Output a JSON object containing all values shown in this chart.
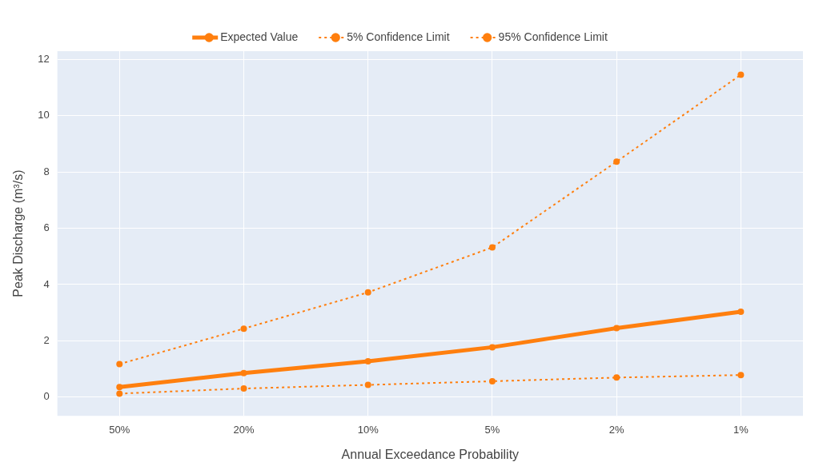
{
  "chart_data": {
    "type": "line",
    "xlabel": "Annual Exceedance Probability",
    "ylabel": "Peak Discharge (m³/s)",
    "categories": [
      "50%",
      "20%",
      "10%",
      "5%",
      "2%",
      "1%"
    ],
    "series": [
      {
        "name": "Expected Value",
        "color": "#ff7f0e",
        "line_style": "solid",
        "values": [
          0.35,
          0.85,
          1.27,
          1.77,
          2.45,
          3.03
        ]
      },
      {
        "name": "5% Confidence Limit",
        "color": "#ff7f0e",
        "line_style": "dotted",
        "values": [
          1.17,
          2.43,
          3.72,
          5.32,
          8.37,
          11.46
        ]
      },
      {
        "name": "95% Confidence Limit",
        "color": "#ff7f0e",
        "line_style": "dotted",
        "values": [
          0.12,
          0.3,
          0.43,
          0.56,
          0.69,
          0.78
        ]
      }
    ],
    "ylim": [
      -0.67,
      12.3
    ],
    "yticks": [
      0,
      2,
      4,
      6,
      8,
      10,
      12
    ],
    "grid": true,
    "legend": "top",
    "marker": "circle"
  }
}
